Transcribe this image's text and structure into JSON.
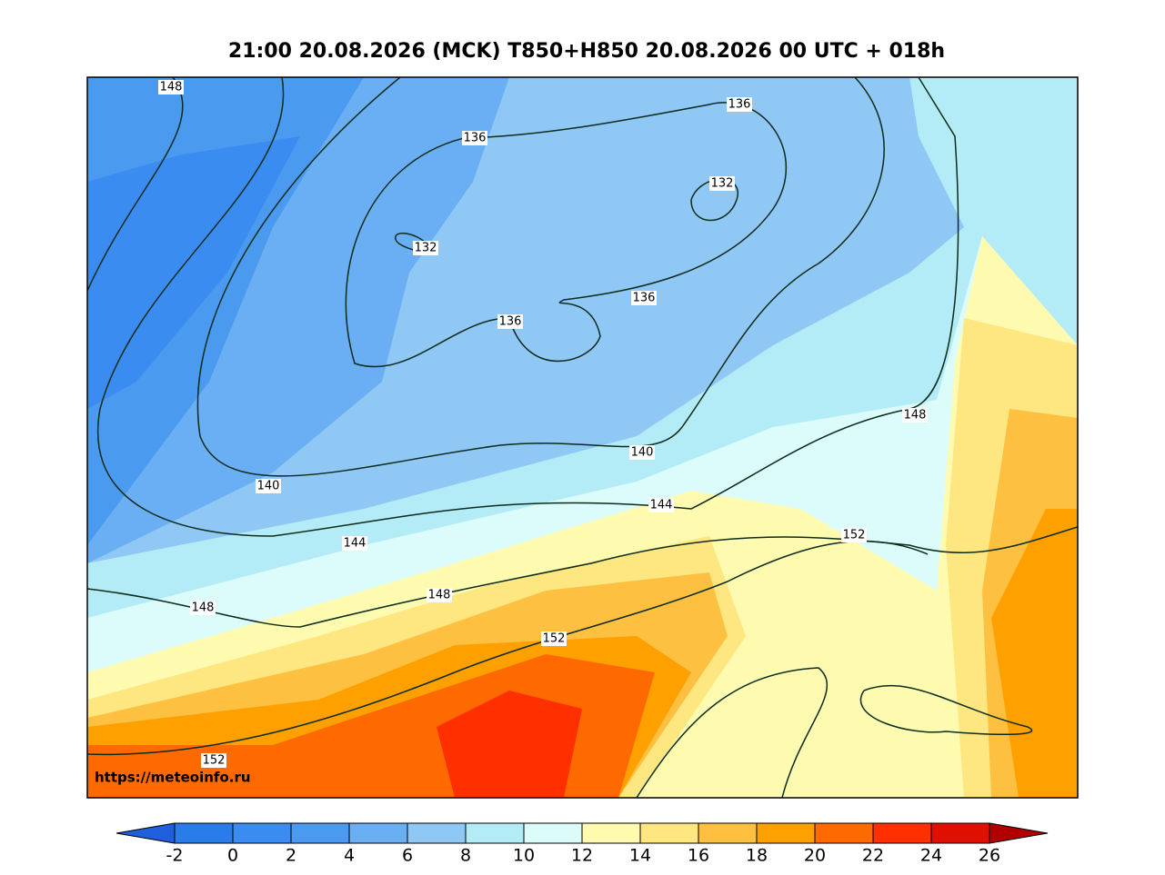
{
  "header": {
    "title": "21:00 20.08.2026 (MCK) T850+H850 20.08.2026 00 UTC + 018h"
  },
  "map": {
    "watermark": "https://meteoinfo.ru",
    "contour_labels": [
      148,
      136,
      136,
      132,
      132,
      136,
      136,
      140,
      148,
      140,
      144,
      144,
      152,
      148,
      148,
      152,
      152
    ]
  },
  "colorbar": {
    "ticks": [
      -2,
      0,
      2,
      4,
      6,
      8,
      10,
      12,
      14,
      16,
      18,
      20,
      22,
      24,
      26
    ],
    "below_color": "#1f5fdc",
    "above_color": "#b00000",
    "colors": [
      "#2a7ce8",
      "#3a8cf0",
      "#4a9af0",
      "#6aaff3",
      "#8fc7f5",
      "#b3ecf7",
      "#dcfcfc",
      "#fefab0",
      "#fee680",
      "#fec040",
      "#fea000",
      "#fe6a00",
      "#fe3000",
      "#e01000"
    ]
  }
}
